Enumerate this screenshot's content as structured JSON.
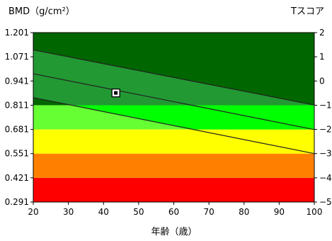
{
  "chart_data": {
    "type": "line",
    "ylabel": "BMD（g/cm²）",
    "ylabel_right": "Tスコア",
    "xlabel": "年齢（歳）",
    "xlim": [
      20,
      100
    ],
    "ylim": [
      0.291,
      1.201
    ],
    "x_ticks": [
      "20",
      "30",
      "40",
      "50",
      "60",
      "70",
      "80",
      "90",
      "100"
    ],
    "y_ticks": [
      "0.291",
      "0.421",
      "0.551",
      "0.681",
      "0.811",
      "0.941",
      "1.071",
      "1.201"
    ],
    "t_ticks": [
      "−5",
      "−4",
      "−3",
      "−2",
      "−1",
      "0",
      "1",
      "2"
    ],
    "zones": [
      {
        "from": 0.291,
        "to": 0.421,
        "color": "#ff0000"
      },
      {
        "from": 0.421,
        "to": 0.551,
        "color": "#ff8000"
      },
      {
        "from": 0.551,
        "to": 0.681,
        "color": "#ffff00"
      },
      {
        "from": 0.681,
        "to": 0.811,
        "color": "#66ff33",
        "band_color": "#00ff00"
      },
      {
        "from": 0.811,
        "to": 1.201,
        "color": "#006600",
        "band_color": "#229933"
      }
    ],
    "series": [
      {
        "role": "upper",
        "x": [
          20,
          100
        ],
        "y": [
          1.108,
          0.812
        ]
      },
      {
        "role": "mean",
        "x": [
          20,
          100
        ],
        "y": [
          0.98,
          0.68
        ]
      },
      {
        "role": "lower",
        "x": [
          20,
          100
        ],
        "y": [
          0.852,
          0.551
        ]
      }
    ],
    "point": {
      "x": 43.5,
      "y": 0.877
    },
    "grid": false
  }
}
